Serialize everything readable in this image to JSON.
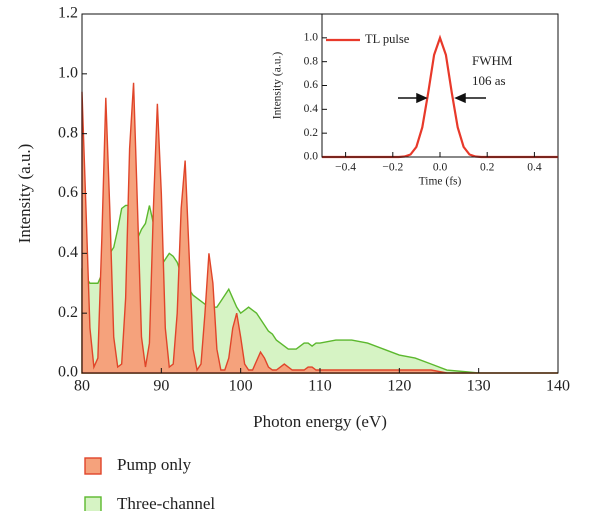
{
  "chart_data": [
    {
      "type": "area",
      "x_label": "Photon energy (eV)",
      "y_label": "Intensity (a.u.)",
      "x": [
        80,
        80.5,
        81,
        81.5,
        82,
        82.5,
        83,
        83.5,
        84,
        84.5,
        85,
        85.5,
        86,
        86.5,
        87,
        87.5,
        88,
        88.5,
        89,
        89.5,
        90,
        90.5,
        91,
        91.5,
        92,
        92.5,
        93,
        93.5,
        94,
        94.5,
        95,
        95.5,
        96,
        96.5,
        97,
        97.5,
        98,
        98.5,
        99,
        99.5,
        100,
        100.5,
        101,
        101.5,
        102,
        102.5,
        103,
        103.5,
        104,
        104.5,
        105,
        105.5,
        106,
        106.5,
        107,
        107.5,
        108,
        108.5,
        109,
        109.5,
        110,
        112,
        114,
        116,
        118,
        120,
        122,
        124,
        126,
        128,
        130,
        132,
        134,
        136,
        138,
        140
      ],
      "series": [
        {
          "name": "Three-channel",
          "color": "#5cb82e",
          "fill": "#d6f3c4",
          "values": [
            0.35,
            0.32,
            0.3,
            0.3,
            0.3,
            0.33,
            0.38,
            0.4,
            0.42,
            0.48,
            0.55,
            0.56,
            0.56,
            0.5,
            0.45,
            0.48,
            0.5,
            0.56,
            0.5,
            0.42,
            0.36,
            0.38,
            0.4,
            0.39,
            0.37,
            0.33,
            0.3,
            0.28,
            0.26,
            0.25,
            0.24,
            0.23,
            0.22,
            0.22,
            0.22,
            0.24,
            0.26,
            0.28,
            0.25,
            0.22,
            0.2,
            0.21,
            0.22,
            0.21,
            0.2,
            0.18,
            0.16,
            0.14,
            0.13,
            0.11,
            0.1,
            0.09,
            0.08,
            0.08,
            0.08,
            0.09,
            0.1,
            0.1,
            0.09,
            0.1,
            0.1,
            0.11,
            0.11,
            0.1,
            0.08,
            0.06,
            0.05,
            0.03,
            0.01,
            0.005,
            0,
            0,
            0,
            0,
            0,
            0
          ]
        },
        {
          "name": "Pump only",
          "color": "#e0452a",
          "fill": "#f5a27c",
          "values": [
            0.94,
            0.55,
            0.15,
            0.02,
            0.05,
            0.45,
            0.92,
            0.55,
            0.12,
            0.02,
            0.03,
            0.25,
            0.75,
            0.97,
            0.55,
            0.12,
            0.02,
            0.1,
            0.55,
            0.9,
            0.6,
            0.15,
            0.02,
            0.03,
            0.2,
            0.55,
            0.71,
            0.4,
            0.08,
            0.01,
            0.03,
            0.2,
            0.4,
            0.3,
            0.08,
            0.01,
            0.01,
            0.05,
            0.15,
            0.2,
            0.12,
            0.03,
            0.01,
            0.01,
            0.04,
            0.07,
            0.05,
            0.02,
            0.01,
            0.01,
            0.02,
            0.03,
            0.02,
            0.01,
            0.01,
            0.01,
            0.01,
            0.02,
            0.02,
            0.01,
            0.01,
            0.01,
            0.01,
            0.01,
            0.01,
            0.01,
            0.01,
            0.01,
            0,
            0,
            0,
            0,
            0,
            0,
            0,
            0
          ]
        }
      ],
      "xlim": [
        80,
        140
      ],
      "xticks": [
        80,
        90,
        100,
        110,
        120,
        130,
        140
      ],
      "ylim": [
        0,
        1.2
      ],
      "yticks": [
        {
          "value": 0,
          "label": "0.0"
        },
        {
          "value": 0.2,
          "label": "0.2"
        },
        {
          "value": 0.4,
          "label": "0.4"
        },
        {
          "value": 0.6,
          "label": "0.6"
        },
        {
          "value": 0.8,
          "label": "0.8"
        },
        {
          "value": 1.0,
          "label": "1.0"
        },
        {
          "value": 1.2,
          "label": "1.2"
        }
      ]
    },
    {
      "type": "line",
      "x_label": "Time (fs)",
      "y_label": "Intensity (a.u.)",
      "annotations": [
        "FWHM",
        "106 as"
      ],
      "x": [
        -0.5,
        -0.2,
        -0.175,
        -0.15,
        -0.125,
        -0.1,
        -0.075,
        -0.05,
        -0.025,
        0,
        0.025,
        0.05,
        0.075,
        0.1,
        0.125,
        0.15,
        0.175,
        0.2,
        0.5
      ],
      "series": [
        {
          "name": "TL pulse",
          "color": "#e8392a",
          "values": [
            0,
            0,
            0,
            0.004,
            0.021,
            0.085,
            0.249,
            0.539,
            0.857,
            1,
            0.857,
            0.539,
            0.249,
            0.085,
            0.021,
            0.004,
            0,
            0,
            0
          ]
        }
      ],
      "xlim": [
        -0.5,
        0.5
      ],
      "xticks": [
        {
          "value": -0.4,
          "label": "−0.4"
        },
        {
          "value": -0.2,
          "label": "−0.2"
        },
        {
          "value": 0,
          "label": "0.0"
        },
        {
          "value": 0.2,
          "label": "0.2"
        },
        {
          "value": 0.4,
          "label": "0.4"
        }
      ],
      "ylim": [
        0,
        1.2
      ],
      "yticks": [
        {
          "value": 0,
          "label": "0.0"
        },
        {
          "value": 0.2,
          "label": "0.2"
        },
        {
          "value": 0.4,
          "label": "0.4"
        },
        {
          "value": 0.6,
          "label": "0.6"
        },
        {
          "value": 0.8,
          "label": "0.8"
        },
        {
          "value": 1.0,
          "label": "1.0"
        }
      ]
    }
  ]
}
